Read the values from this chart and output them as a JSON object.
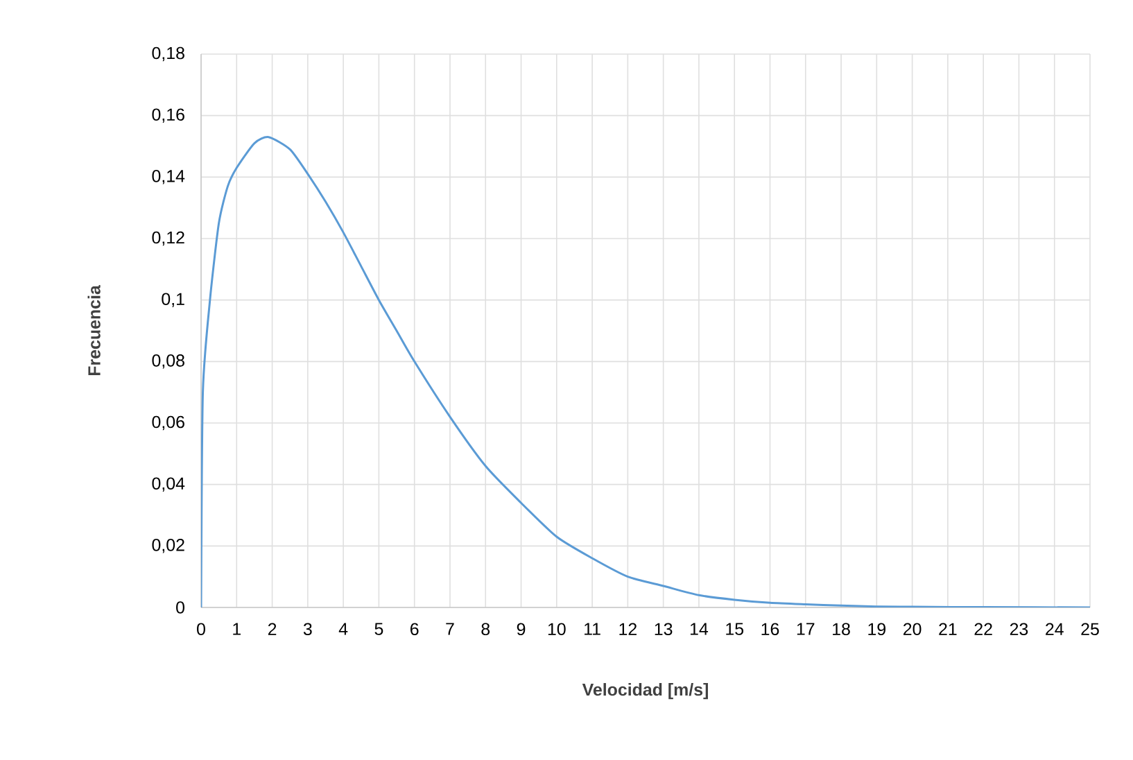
{
  "chart_data": {
    "type": "line",
    "xlabel": "Velocidad [m/s]",
    "ylabel": "Frecuencia",
    "x": [
      0,
      0.05,
      0.25,
      0.5,
      0.75,
      1,
      1.5,
      1.9,
      2.5,
      3,
      3.5,
      4,
      4.5,
      5,
      5.5,
      6,
      7,
      8,
      9,
      10,
      11,
      12,
      13,
      14,
      15,
      16,
      17,
      18,
      19,
      20,
      22,
      25
    ],
    "series": [
      {
        "color": "#5b9bd5",
        "values": [
          0,
          0.07,
          0.1,
          0.125,
          0.137,
          0.143,
          0.151,
          0.153,
          0.149,
          0.141,
          0.132,
          0.122,
          0.111,
          0.1,
          0.09,
          0.08,
          0.062,
          0.046,
          0.034,
          0.023,
          0.016,
          0.01,
          0.007,
          0.004,
          0.0025,
          0.0015,
          0.001,
          0.0006,
          0.0003,
          0.0002,
          0.0001,
          0
        ]
      }
    ],
    "xlim": [
      0,
      25
    ],
    "xticks": [
      0,
      1,
      2,
      3,
      4,
      5,
      6,
      7,
      8,
      9,
      10,
      11,
      12,
      13,
      14,
      15,
      16,
      17,
      18,
      19,
      20,
      21,
      22,
      23,
      24,
      25
    ],
    "ylim": [
      0,
      0.18
    ],
    "yticks": [
      {
        "value": 0,
        "label": "0"
      },
      {
        "value": 0.02,
        "label": "0,02"
      },
      {
        "value": 0.04,
        "label": "0,04"
      },
      {
        "value": 0.06,
        "label": "0,06"
      },
      {
        "value": 0.08,
        "label": "0,08"
      },
      {
        "value": 0.1,
        "label": "0,1"
      },
      {
        "value": 0.12,
        "label": "0,12"
      },
      {
        "value": 0.14,
        "label": "0,14"
      },
      {
        "value": 0.16,
        "label": "0,16"
      },
      {
        "value": 0.18,
        "label": "0,18"
      }
    ],
    "grid": true,
    "marker": "none",
    "line_style": "solid"
  }
}
